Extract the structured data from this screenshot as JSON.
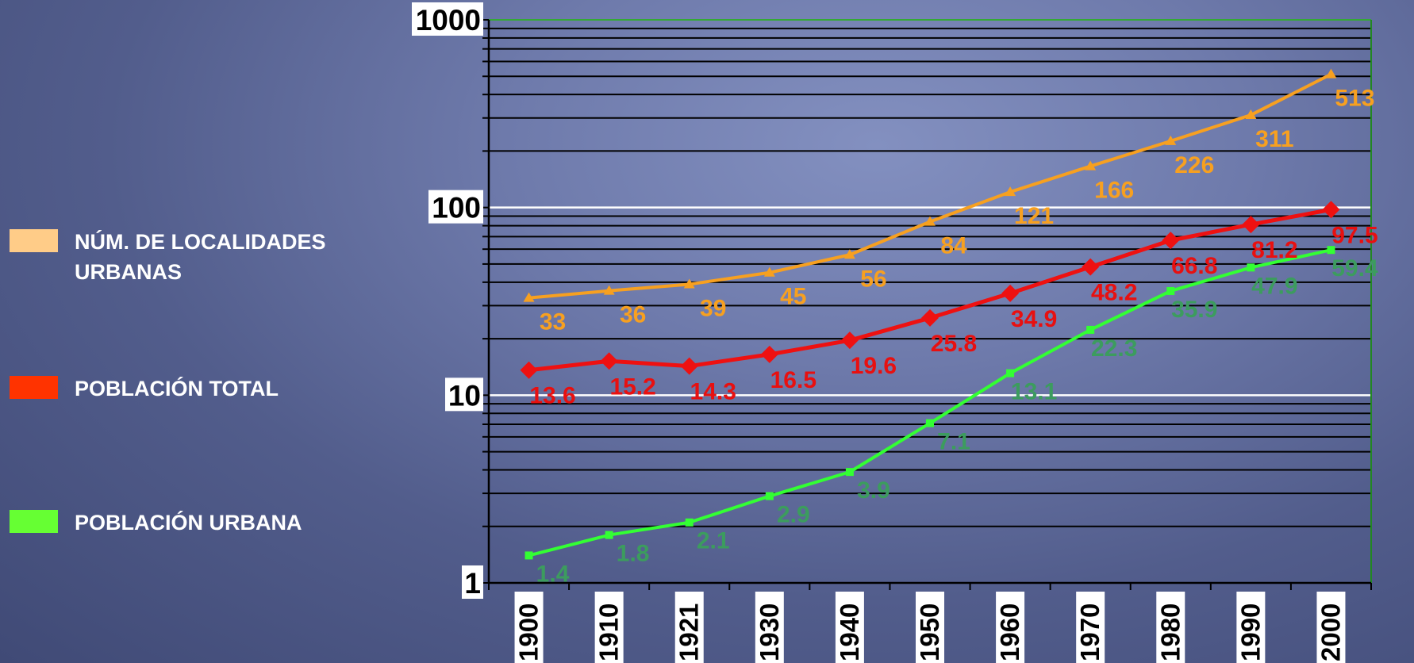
{
  "legend": {
    "items": [
      {
        "label": "NÚM. DE LOCALIDADES URBANAS",
        "color": "#ffcc88"
      },
      {
        "label": "POBLACIÓN TOTAL",
        "color": "#ff3300"
      },
      {
        "label": "POBLACIÓN URBANA",
        "color": "#66ff33"
      }
    ]
  },
  "chart_data": {
    "type": "line",
    "title": "",
    "xlabel": "",
    "ylabel": "",
    "y_scale": "log",
    "ylim": [
      1,
      1000
    ],
    "y_ticks": [
      "1",
      "10",
      "100",
      "1000"
    ],
    "categories": [
      "1900",
      "1910",
      "1921",
      "1930",
      "1940",
      "1950",
      "1960",
      "1970",
      "1980",
      "1990",
      "2000"
    ],
    "series": [
      {
        "name": "NÚM. DE LOCALIDADES URBANAS",
        "line_color": "#f7a020",
        "label_color": "#f7a020",
        "marker": "triangle",
        "values": [
          33,
          36,
          39,
          45,
          56,
          84,
          121,
          166,
          226,
          311,
          513
        ],
        "labels": [
          "33",
          "36",
          "39",
          "45",
          "56",
          "84",
          "121",
          "166",
          "226",
          "311",
          "513"
        ]
      },
      {
        "name": "POBLACIÓN TOTAL",
        "line_color": "#ee1111",
        "label_color": "#e81010",
        "marker": "diamond",
        "values": [
          13.6,
          15.2,
          14.3,
          16.5,
          19.6,
          25.8,
          34.9,
          48.2,
          66.8,
          81.2,
          97.5
        ],
        "labels": [
          "13.6",
          "15.2",
          "14.3",
          "16.5",
          "19.6",
          "25.8",
          "34.9",
          "48.2",
          "66.8",
          "81.2",
          "97.5"
        ]
      },
      {
        "name": "POBLACIÓN URBANA",
        "line_color": "#33ff33",
        "label_color": "#3c9c5e",
        "marker": "square",
        "values": [
          1.4,
          1.8,
          2.1,
          2.9,
          3.9,
          7.1,
          13.1,
          22.3,
          35.9,
          47.9,
          59.4
        ],
        "labels": [
          "1.4",
          "1.8",
          "2.1",
          "2.9",
          "3.9",
          "7.1",
          "13.1",
          "22.3",
          "35.9",
          "47.9",
          "59.4"
        ]
      }
    ],
    "grid": true,
    "legend_position": "left"
  }
}
